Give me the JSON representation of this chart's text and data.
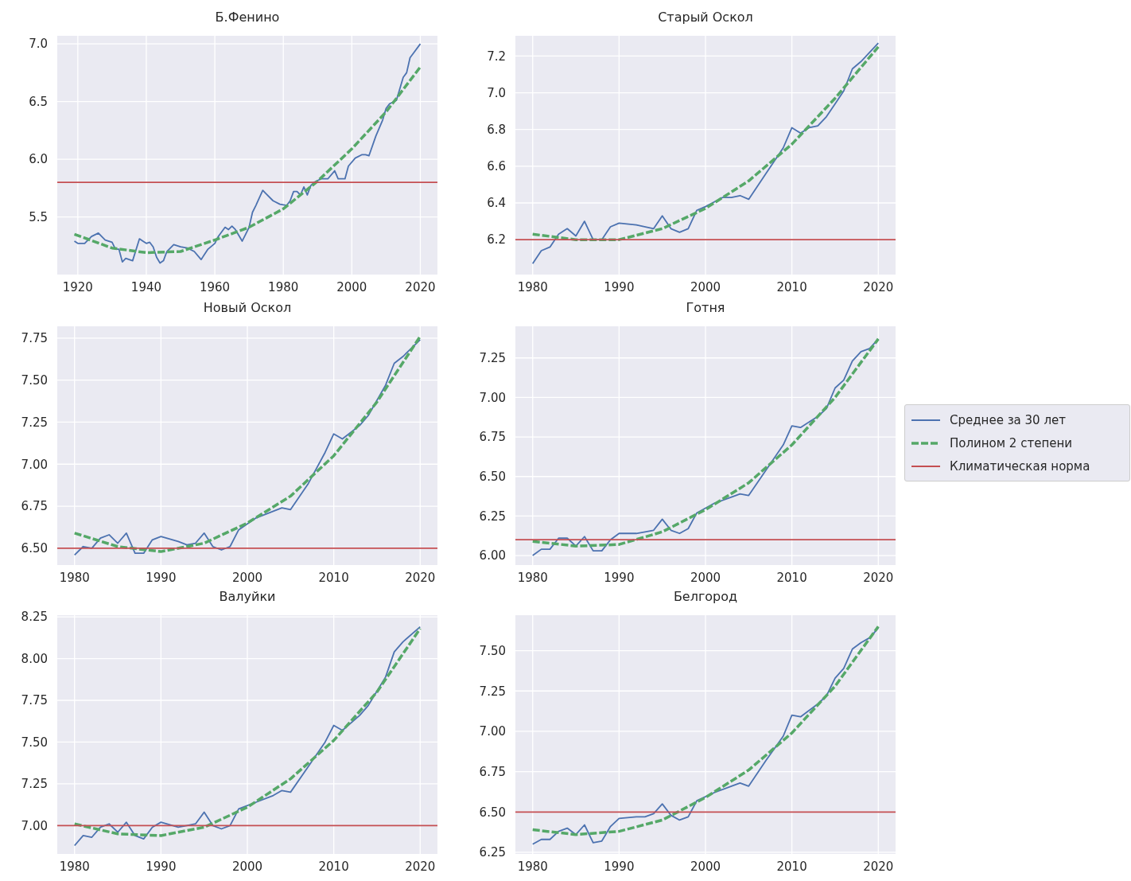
{
  "chart_data": [
    {
      "type": "line",
      "title": "Б.Фенино",
      "xlim": [
        1914,
        2025
      ],
      "xticks": [
        1920,
        1940,
        1960,
        1980,
        2000,
        2020
      ],
      "ylim": [
        5.0,
        7.07
      ],
      "yticks": [
        {
          "value": 5.5,
          "label": "5.5"
        },
        {
          "value": 6,
          "label": "6.0"
        },
        6.5,
        {
          "value": 7,
          "label": "7.0"
        }
      ],
      "grid": true,
      "series": [
        {
          "color": "#4c72b0",
          "line_style": "solid",
          "x": [
            1919,
            1920,
            1922,
            1924,
            1926,
            1928,
            1930,
            1931,
            1932,
            1933,
            1934,
            1936,
            1938,
            1939,
            1940,
            1941,
            1942,
            1943,
            1944,
            1945,
            1946,
            1948,
            1950,
            1952,
            1954,
            1956,
            1958,
            1960,
            1961,
            1963,
            1964,
            1965,
            1966,
            1967,
            1968,
            1969,
            1970,
            1971,
            1972,
            1974,
            1975,
            1977,
            1979,
            1981,
            1982,
            1983,
            1984,
            1985,
            1986,
            1987,
            1988,
            1989,
            1991,
            1993,
            1995,
            1996,
            1998,
            1999,
            2001,
            2003,
            2004,
            2005,
            2007,
            2009,
            2010,
            2011,
            2013,
            2015,
            2016,
            2017,
            2018,
            2020
          ],
          "values": [
            5.29,
            5.27,
            5.27,
            5.33,
            5.36,
            5.3,
            5.28,
            5.22,
            5.22,
            5.11,
            5.14,
            5.12,
            5.31,
            5.29,
            5.27,
            5.28,
            5.24,
            5.15,
            5.1,
            5.12,
            5.2,
            5.26,
            5.24,
            5.23,
            5.2,
            5.13,
            5.22,
            5.27,
            5.33,
            5.41,
            5.39,
            5.42,
            5.39,
            5.34,
            5.29,
            5.35,
            5.41,
            5.54,
            5.6,
            5.73,
            5.7,
            5.64,
            5.61,
            5.6,
            5.64,
            5.72,
            5.72,
            5.69,
            5.76,
            5.69,
            5.77,
            5.8,
            5.83,
            5.83,
            5.9,
            5.83,
            5.83,
            5.94,
            6.01,
            6.04,
            6.04,
            6.03,
            6.2,
            6.34,
            6.44,
            6.48,
            6.51,
            6.71,
            6.75,
            6.88,
            6.92,
            7.0
          ]
        },
        {
          "color": "#55a868",
          "line_style": "dashed",
          "x": [
            1919,
            1930,
            1940,
            1950,
            1960,
            1970,
            1980,
            1990,
            2000,
            2010,
            2020
          ],
          "values": [
            5.35,
            5.23,
            5.19,
            5.2,
            5.3,
            5.41,
            5.57,
            5.81,
            6.09,
            6.41,
            6.8
          ]
        },
        {
          "color": "#c44e52",
          "line_style": "solid",
          "x": [
            1914,
            2025
          ],
          "values": [
            5.8,
            5.8
          ]
        }
      ]
    },
    {
      "type": "line",
      "title": "Старый Оскол",
      "xlim": [
        1978,
        2022
      ],
      "xticks": [
        1980,
        1990,
        2000,
        2010,
        2020
      ],
      "ylim": [
        6.01,
        7.31
      ],
      "yticks": [
        6.2,
        6.4,
        6.6,
        6.8,
        {
          "value": 7,
          "label": "7.0"
        },
        7.2
      ],
      "grid": true,
      "series": [
        {
          "color": "#4c72b0",
          "line_style": "solid",
          "x": [
            1980,
            1981,
            1982,
            1983,
            1984,
            1985,
            1986,
            1987,
            1988,
            1989,
            1990,
            1992,
            1994,
            1995,
            1996,
            1997,
            1998,
            1999,
            2000,
            2002,
            2003,
            2004,
            2005,
            2007,
            2009,
            2010,
            2011,
            2012,
            2013,
            2014,
            2015,
            2016,
            2017,
            2018,
            2020
          ],
          "values": [
            6.07,
            6.14,
            6.16,
            6.23,
            6.26,
            6.22,
            6.3,
            6.2,
            6.2,
            6.27,
            6.29,
            6.28,
            6.26,
            6.33,
            6.26,
            6.24,
            6.26,
            6.36,
            6.38,
            6.43,
            6.43,
            6.44,
            6.42,
            6.56,
            6.7,
            6.81,
            6.78,
            6.81,
            6.82,
            6.87,
            6.94,
            7.01,
            7.13,
            7.17,
            7.27
          ]
        },
        {
          "color": "#55a868",
          "line_style": "dashed",
          "x": [
            1980,
            1985,
            1990,
            1995,
            2000,
            2005,
            2010,
            2015,
            2020
          ],
          "values": [
            6.23,
            6.2,
            6.2,
            6.26,
            6.37,
            6.52,
            6.72,
            6.97,
            7.25
          ]
        },
        {
          "color": "#c44e52",
          "line_style": "solid",
          "x": [
            1978,
            2022
          ],
          "values": [
            6.2,
            6.2
          ]
        }
      ]
    },
    {
      "type": "line",
      "title": "Новый Оскол",
      "xlim": [
        1978,
        2022
      ],
      "xticks": [
        1980,
        1990,
        2000,
        2010,
        2020
      ],
      "ylim": [
        6.4,
        7.82
      ],
      "yticks": [
        {
          "value": 6.5,
          "label": "6.50"
        },
        6.75,
        {
          "value": 7,
          "label": "7.00"
        },
        7.25,
        {
          "value": 7.5,
          "label": "7.50"
        },
        7.75
      ],
      "grid": true,
      "series": [
        {
          "color": "#4c72b0",
          "line_style": "solid",
          "x": [
            1980,
            1981,
            1982,
            1983,
            1984,
            1985,
            1986,
            1987,
            1988,
            1989,
            1990,
            1992,
            1993,
            1994,
            1995,
            1996,
            1997,
            1998,
            1999,
            2001,
            2003,
            2004,
            2005,
            2007,
            2009,
            2010,
            2011,
            2013,
            2014,
            2016,
            2017,
            2018,
            2020
          ],
          "values": [
            6.46,
            6.51,
            6.5,
            6.56,
            6.58,
            6.53,
            6.59,
            6.47,
            6.47,
            6.55,
            6.57,
            6.54,
            6.52,
            6.53,
            6.59,
            6.51,
            6.49,
            6.51,
            6.61,
            6.68,
            6.72,
            6.74,
            6.73,
            6.88,
            7.07,
            7.18,
            7.15,
            7.23,
            7.29,
            7.47,
            7.6,
            7.64,
            7.74
          ]
        },
        {
          "color": "#55a868",
          "line_style": "dashed",
          "x": [
            1980,
            1985,
            1990,
            1995,
            2000,
            2005,
            2010,
            2015,
            2020
          ],
          "values": [
            6.59,
            6.51,
            6.48,
            6.53,
            6.65,
            6.81,
            7.05,
            7.37,
            7.76
          ]
        },
        {
          "color": "#c44e52",
          "line_style": "solid",
          "x": [
            1978,
            2022
          ],
          "values": [
            6.5,
            6.5
          ]
        }
      ]
    },
    {
      "type": "line",
      "title": "Готня",
      "xlim": [
        1978,
        2022
      ],
      "xticks": [
        1980,
        1990,
        2000,
        2010,
        2020
      ],
      "ylim": [
        5.94,
        7.45
      ],
      "yticks": [
        {
          "value": 6,
          "label": "6.00"
        },
        6.25,
        {
          "value": 6.5,
          "label": "6.50"
        },
        6.75,
        {
          "value": 7,
          "label": "7.00"
        },
        7.25
      ],
      "grid": true,
      "legend": "right",
      "series": [
        {
          "name": "Среднее за 30 лет",
          "color": "#4c72b0",
          "line_style": "solid",
          "x": [
            1980,
            1981,
            1982,
            1983,
            1984,
            1985,
            1986,
            1987,
            1988,
            1989,
            1990,
            1992,
            1994,
            1995,
            1996,
            1997,
            1998,
            1999,
            2001,
            2003,
            2004,
            2005,
            2007,
            2009,
            2010,
            2011,
            2013,
            2014,
            2015,
            2016,
            2017,
            2018,
            2019,
            2020
          ],
          "values": [
            6.0,
            6.04,
            6.04,
            6.11,
            6.11,
            6.06,
            6.12,
            6.03,
            6.03,
            6.1,
            6.14,
            6.14,
            6.16,
            6.23,
            6.16,
            6.14,
            6.17,
            6.27,
            6.33,
            6.37,
            6.39,
            6.38,
            6.54,
            6.7,
            6.82,
            6.81,
            6.88,
            6.93,
            7.06,
            7.11,
            7.23,
            7.29,
            7.31,
            7.37
          ]
        },
        {
          "name": "Полином 2 степени",
          "color": "#55a868",
          "line_style": "dashed",
          "x": [
            1980,
            1985,
            1990,
            1995,
            2000,
            2005,
            2010,
            2015,
            2020
          ],
          "values": [
            6.09,
            6.06,
            6.07,
            6.15,
            6.29,
            6.46,
            6.7,
            7.0,
            7.37
          ]
        },
        {
          "name": "Климатическая норма",
          "color": "#c44e52",
          "line_style": "solid",
          "x": [
            1978,
            2022
          ],
          "values": [
            6.1,
            6.1
          ]
        }
      ]
    },
    {
      "type": "line",
      "title": "Валуйки",
      "xlim": [
        1978,
        2022
      ],
      "xticks": [
        1980,
        1990,
        2000,
        2010,
        2020
      ],
      "ylim": [
        6.83,
        8.26
      ],
      "yticks": [
        {
          "value": 7,
          "label": "7.00"
        },
        7.25,
        {
          "value": 7.5,
          "label": "7.50"
        },
        7.75,
        {
          "value": 8,
          "label": "8.00"
        },
        8.25
      ],
      "grid": true,
      "series": [
        {
          "color": "#4c72b0",
          "line_style": "solid",
          "x": [
            1980,
            1981,
            1982,
            1983,
            1984,
            1985,
            1986,
            1987,
            1988,
            1989,
            1990,
            1992,
            1993,
            1994,
            1995,
            1996,
            1997,
            1998,
            1999,
            2001,
            2003,
            2004,
            2005,
            2007,
            2009,
            2010,
            2011,
            2013,
            2014,
            2016,
            2017,
            2018,
            2020
          ],
          "values": [
            6.88,
            6.94,
            6.93,
            6.99,
            7.01,
            6.96,
            7.02,
            6.94,
            6.92,
            6.99,
            7.02,
            6.99,
            7.0,
            7.01,
            7.08,
            7.0,
            6.98,
            7.0,
            7.1,
            7.14,
            7.18,
            7.21,
            7.2,
            7.35,
            7.5,
            7.6,
            7.57,
            7.66,
            7.72,
            7.89,
            8.04,
            8.1,
            8.19
          ]
        },
        {
          "color": "#55a868",
          "line_style": "dashed",
          "x": [
            1980,
            1985,
            1990,
            1995,
            2000,
            2005,
            2010,
            2015,
            2020
          ],
          "values": [
            7.01,
            6.95,
            6.94,
            6.99,
            7.11,
            7.28,
            7.51,
            7.8,
            8.18
          ]
        },
        {
          "color": "#c44e52",
          "line_style": "solid",
          "x": [
            1978,
            2022
          ],
          "values": [
            7.0,
            7.0
          ]
        }
      ]
    },
    {
      "type": "line",
      "title": "Белгород",
      "xlim": [
        1978,
        2022
      ],
      "xticks": [
        1980,
        1990,
        2000,
        2010,
        2020
      ],
      "ylim": [
        6.24,
        7.72
      ],
      "yticks": [
        6.25,
        {
          "value": 6.5,
          "label": "6.50"
        },
        6.75,
        {
          "value": 7,
          "label": "7.00"
        },
        7.25,
        {
          "value": 7.5,
          "label": "7.50"
        }
      ],
      "grid": true,
      "series": [
        {
          "color": "#4c72b0",
          "line_style": "solid",
          "x": [
            1980,
            1981,
            1982,
            1983,
            1984,
            1985,
            1986,
            1987,
            1988,
            1989,
            1990,
            1992,
            1993,
            1994,
            1995,
            1996,
            1997,
            1998,
            1999,
            2001,
            2003,
            2004,
            2005,
            2007,
            2009,
            2010,
            2011,
            2013,
            2014,
            2015,
            2016,
            2017,
            2018,
            2019,
            2020
          ],
          "values": [
            6.3,
            6.33,
            6.33,
            6.38,
            6.4,
            6.36,
            6.42,
            6.31,
            6.32,
            6.41,
            6.46,
            6.47,
            6.47,
            6.49,
            6.55,
            6.48,
            6.45,
            6.47,
            6.57,
            6.62,
            6.66,
            6.68,
            6.66,
            6.82,
            6.97,
            7.1,
            7.09,
            7.17,
            7.22,
            7.33,
            7.39,
            7.51,
            7.55,
            7.58,
            7.64
          ]
        },
        {
          "color": "#55a868",
          "line_style": "dashed",
          "x": [
            1980,
            1985,
            1990,
            1995,
            2000,
            2005,
            2010,
            2015,
            2020
          ],
          "values": [
            6.39,
            6.36,
            6.38,
            6.45,
            6.59,
            6.76,
            6.99,
            7.28,
            7.65
          ]
        },
        {
          "color": "#c44e52",
          "line_style": "solid",
          "x": [
            1978,
            2022
          ],
          "values": [
            6.5,
            6.5
          ]
        }
      ]
    }
  ]
}
